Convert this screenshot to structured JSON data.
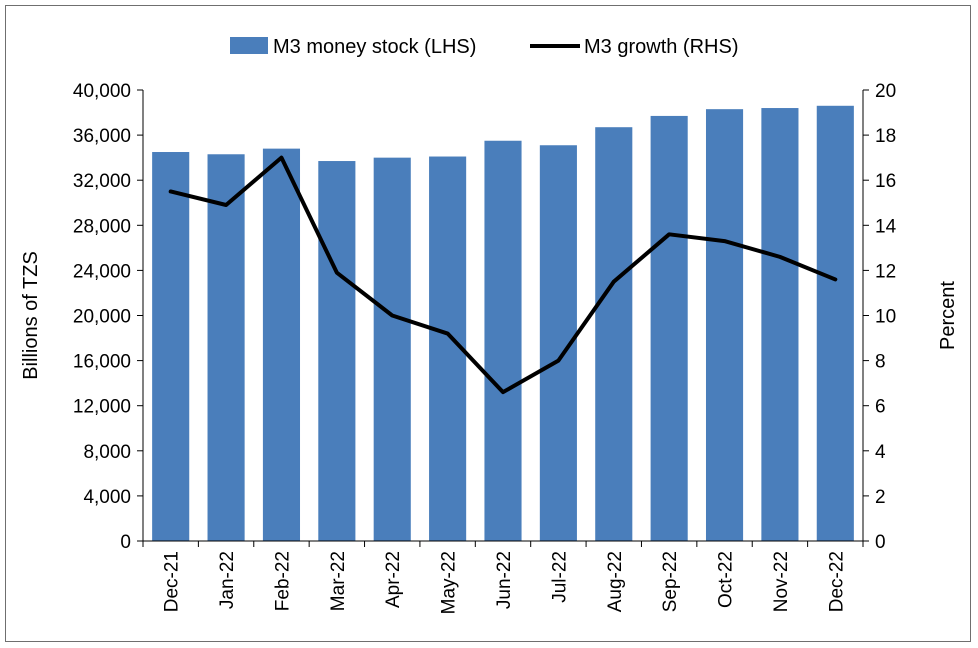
{
  "chart_data": {
    "type": "bar+line",
    "categories": [
      "Dec-21",
      "Jan-22",
      "Feb-22",
      "Mar-22",
      "Apr-22",
      "May-22",
      "Jun-22",
      "Jul-22",
      "Aug-22",
      "Sep-22",
      "Oct-22",
      "Nov-22",
      "Dec-22"
    ],
    "series": [
      {
        "name": "M3 money stock (LHS)",
        "type": "bar",
        "axis": "left",
        "color": "#4a7ebb",
        "values": [
          34500,
          34300,
          34800,
          33700,
          34000,
          34100,
          35500,
          35100,
          36700,
          37700,
          38300,
          38400,
          38600
        ]
      },
      {
        "name": "M3 growth (RHS)",
        "type": "line",
        "axis": "right",
        "color": "#000000",
        "values": [
          15.5,
          14.9,
          17.0,
          11.9,
          10.0,
          9.2,
          6.6,
          8.0,
          11.5,
          13.6,
          13.3,
          12.6,
          11.6
        ]
      }
    ],
    "ylabel_left": "Billions of TZS",
    "ylabel_right": "Percent",
    "ylim_left": [
      0,
      40000
    ],
    "ylim_right": [
      0,
      20
    ],
    "yticks_left": [
      "0",
      "4,000",
      "8,000",
      "12,000",
      "16,000",
      "20,000",
      "24,000",
      "28,000",
      "32,000",
      "36,000",
      "40,000"
    ],
    "yticks_right": [
      "0",
      "2",
      "4",
      "6",
      "8",
      "10",
      "12",
      "14",
      "16",
      "18",
      "20"
    ],
    "legend_position": "top-center",
    "grid": false
  }
}
